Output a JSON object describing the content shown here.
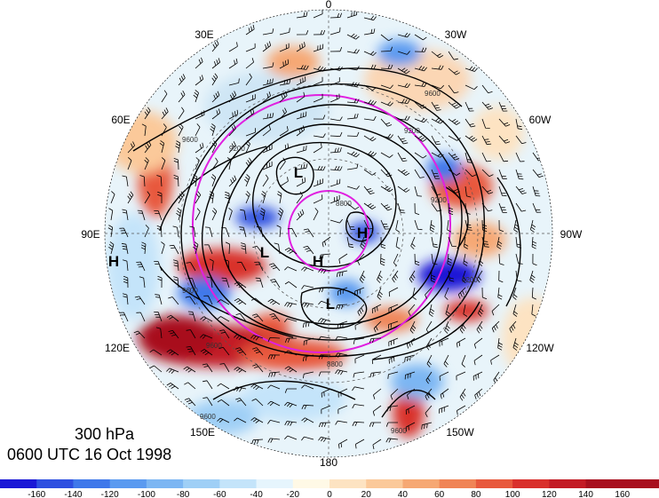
{
  "map": {
    "projection": "north-polar-stereographic",
    "longitude_labels": [
      "0",
      "30W",
      "60W",
      "90W",
      "120W",
      "150W",
      "180",
      "150E",
      "120E",
      "90E",
      "60E",
      "30E"
    ],
    "pressure_systems": [
      {
        "type": "H"
      },
      {
        "type": "L"
      },
      {
        "type": "H"
      },
      {
        "type": "L"
      },
      {
        "type": "L"
      },
      {
        "type": "H"
      }
    ],
    "contour_labels": [
      "9600",
      "9200",
      "9200",
      "9600",
      "8800",
      "9600",
      "9200",
      "9600",
      "8800",
      "9200",
      "9600",
      "9600"
    ],
    "ring_color": "#e020e0",
    "contour_color": "#000000"
  },
  "caption": {
    "level": "300 hPa",
    "time": "0600 UTC 16 Oct 1998"
  },
  "colorbar": {
    "labels": [
      "-160",
      "-140",
      "-120",
      "-100",
      "-80",
      "-60",
      "-40",
      "-20",
      "0",
      "20",
      "40",
      "60",
      "80",
      "100",
      "120",
      "140",
      "160"
    ],
    "colors": [
      "#1a18d6",
      "#2e4fe0",
      "#3f78ea",
      "#5a9af0",
      "#7cb6f3",
      "#9fcff6",
      "#c4e4fa",
      "#e6f5fd",
      "#fff9e6",
      "#fde3c2",
      "#fbc99a",
      "#f6a874",
      "#f08456",
      "#e8593d",
      "#d9302c",
      "#c31b25",
      "#a80f1e"
    ]
  }
}
